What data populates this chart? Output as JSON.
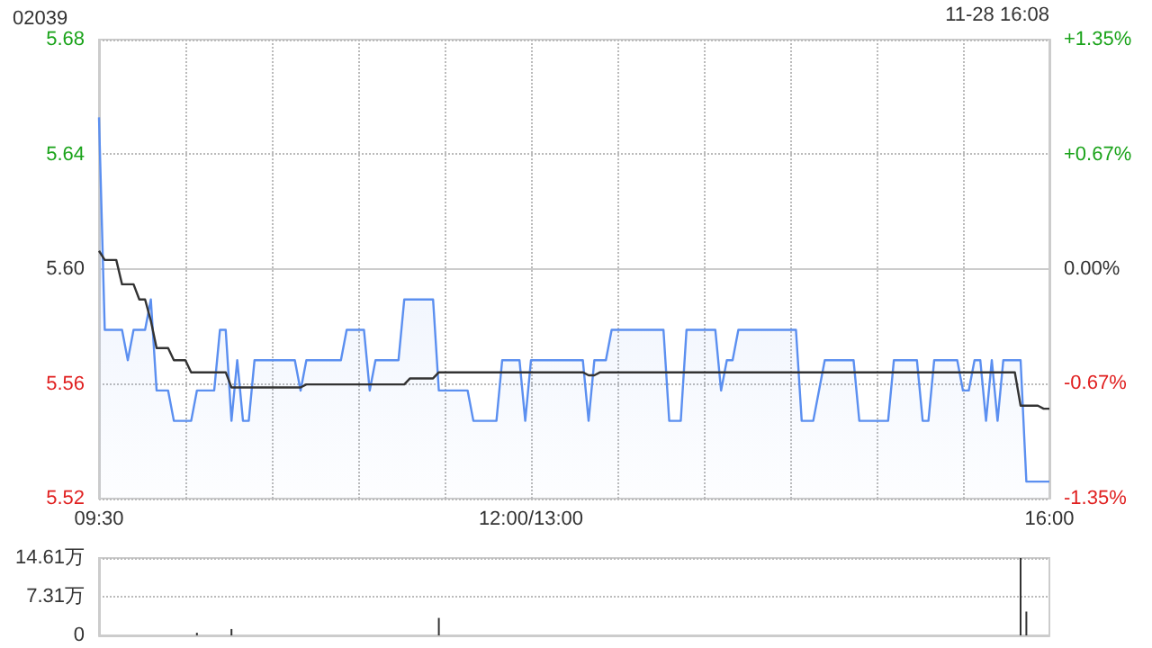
{
  "chart_data": [
    {
      "type": "area",
      "title": "02039",
      "annotations": [
        "11-28 16:08"
      ],
      "categories": [
        "09:30",
        null,
        null,
        null,
        null,
        null,
        null,
        null,
        null,
        null,
        null,
        null,
        null,
        null,
        null,
        null,
        null,
        null,
        null,
        null,
        null,
        null,
        null,
        null,
        null,
        null,
        null,
        null,
        null,
        null,
        null,
        null,
        null,
        null,
        null,
        null,
        null,
        null,
        null,
        null,
        null,
        null,
        null,
        null,
        null,
        null,
        null,
        null,
        null,
        null,
        null,
        null,
        null,
        null,
        null,
        null,
        null,
        null,
        null,
        null,
        null,
        null,
        null,
        null,
        null,
        null,
        null,
        null,
        null,
        null,
        null,
        null,
        null,
        null,
        null,
        "12:00/13:00",
        null,
        null,
        null,
        null,
        null,
        null,
        null,
        null,
        null,
        null,
        null,
        null,
        null,
        null,
        null,
        null,
        null,
        null,
        null,
        null,
        null,
        null,
        null,
        null,
        null,
        null,
        null,
        null,
        null,
        null,
        null,
        null,
        null,
        null,
        null,
        null,
        null,
        null,
        null,
        null,
        null,
        null,
        null,
        null,
        null,
        null,
        null,
        null,
        null,
        null,
        null,
        null,
        null,
        null,
        null,
        null,
        null,
        null,
        null,
        null,
        null,
        null,
        null,
        null,
        null,
        null,
        null,
        null,
        null,
        null,
        null,
        null,
        null,
        null,
        null,
        null,
        null,
        null,
        null,
        null,
        null,
        null,
        null,
        null,
        null,
        null,
        null,
        null,
        null,
        "16:00"
      ],
      "ylim": [
        5.5244,
        5.6756
      ],
      "yticks": [
        {
          "value": 5.5244,
          "label": "5.52"
        },
        {
          "value": 5.5622,
          "label": "5.56"
        },
        {
          "value": 5.6,
          "label": "5.60"
        },
        {
          "value": 5.6378,
          "label": "5.64"
        },
        {
          "value": 5.6756,
          "label": "5.68"
        }
      ],
      "y2lim": [
        -1.35,
        1.35
      ],
      "y2ticks": [
        {
          "value": -1.35,
          "label": "-1.35%"
        },
        {
          "value": -0.67,
          "label": "-0.67%"
        },
        {
          "value": 0,
          "label": "0.00%"
        },
        {
          "value": 0.67,
          "label": "+0.67%"
        },
        {
          "value": 1.35,
          "label": "+1.35%"
        }
      ],
      "grid": true,
      "marker": "none",
      "series": [
        {
          "type": "area",
          "color": "#5b8ff0",
          "values": [
            5.65,
            5.58,
            5.58,
            5.58,
            5.58,
            5.57,
            5.58,
            5.58,
            5.58,
            5.59,
            5.56,
            5.56,
            5.56,
            5.55,
            5.55,
            5.55,
            5.55,
            5.56,
            5.56,
            5.56,
            5.56,
            5.58,
            5.58,
            5.55,
            5.57,
            5.55,
            5.55,
            5.57,
            5.57,
            5.57,
            5.57,
            5.57,
            5.57,
            5.57,
            5.57,
            5.56,
            5.57,
            5.57,
            5.57,
            5.57,
            5.57,
            5.57,
            5.57,
            5.58,
            5.58,
            5.58,
            5.58,
            5.56,
            5.57,
            5.57,
            5.57,
            5.57,
            5.57,
            5.59,
            5.59,
            5.59,
            5.59,
            5.59,
            5.59,
            5.56,
            5.56,
            5.56,
            5.56,
            5.56,
            5.56,
            5.55,
            5.55,
            5.55,
            5.55,
            5.55,
            5.57,
            5.57,
            5.57,
            5.57,
            5.55,
            5.57,
            5.57,
            5.57,
            5.57,
            5.57,
            5.57,
            5.57,
            5.57,
            5.57,
            5.57,
            5.55,
            5.57,
            5.57,
            5.57,
            5.58,
            5.58,
            5.58,
            5.58,
            5.58,
            5.58,
            5.58,
            5.58,
            5.58,
            5.58,
            5.55,
            5.55,
            5.55,
            5.58,
            5.58,
            5.58,
            5.58,
            5.58,
            5.58,
            5.56,
            5.57,
            5.57,
            5.58,
            5.58,
            5.58,
            5.58,
            5.58,
            5.58,
            5.58,
            5.58,
            5.58,
            5.58,
            5.58,
            5.55,
            5.55,
            5.55,
            5.56,
            5.57,
            5.57,
            5.57,
            5.57,
            5.57,
            5.57,
            5.55,
            5.55,
            5.55,
            5.55,
            5.55,
            5.55,
            5.57,
            5.57,
            5.57,
            5.57,
            5.57,
            5.55,
            5.55,
            5.57,
            5.57,
            5.57,
            5.57,
            5.57,
            5.56,
            5.56,
            5.57,
            5.57,
            5.55,
            5.57,
            5.55,
            5.57,
            5.57,
            5.57,
            5.57,
            5.53,
            5.53,
            5.53,
            5.53,
            5.53
          ]
        },
        {
          "type": "line",
          "color": "#333333",
          "values": [
            5.606,
            5.603,
            5.603,
            5.603,
            5.595,
            5.595,
            5.595,
            5.59,
            5.59,
            5.583,
            5.574,
            5.574,
            5.574,
            5.57,
            5.57,
            5.57,
            5.566,
            5.566,
            5.566,
            5.566,
            5.566,
            5.566,
            5.566,
            5.561,
            5.561,
            5.561,
            5.561,
            5.561,
            5.561,
            5.561,
            5.561,
            5.561,
            5.561,
            5.561,
            5.561,
            5.561,
            5.562,
            5.562,
            5.562,
            5.562,
            5.562,
            5.562,
            5.562,
            5.562,
            5.562,
            5.562,
            5.562,
            5.562,
            5.562,
            5.562,
            5.562,
            5.562,
            5.562,
            5.562,
            5.564,
            5.564,
            5.564,
            5.564,
            5.564,
            5.566,
            5.566,
            5.566,
            5.566,
            5.566,
            5.566,
            5.566,
            5.566,
            5.566,
            5.566,
            5.566,
            5.566,
            5.566,
            5.566,
            5.566,
            5.566,
            5.566,
            5.566,
            5.566,
            5.566,
            5.566,
            5.566,
            5.566,
            5.566,
            5.566,
            5.566,
            5.565,
            5.565,
            5.566,
            5.566,
            5.566,
            5.566,
            5.566,
            5.566,
            5.566,
            5.566,
            5.566,
            5.566,
            5.566,
            5.566,
            5.566,
            5.566,
            5.566,
            5.566,
            5.566,
            5.566,
            5.566,
            5.566,
            5.566,
            5.566,
            5.566,
            5.566,
            5.566,
            5.566,
            5.566,
            5.566,
            5.566,
            5.566,
            5.566,
            5.566,
            5.566,
            5.566,
            5.566,
            5.566,
            5.566,
            5.566,
            5.566,
            5.566,
            5.566,
            5.566,
            5.566,
            5.566,
            5.566,
            5.566,
            5.566,
            5.566,
            5.566,
            5.566,
            5.566,
            5.566,
            5.566,
            5.566,
            5.566,
            5.566,
            5.566,
            5.566,
            5.566,
            5.566,
            5.566,
            5.566,
            5.566,
            5.566,
            5.566,
            5.566,
            5.566,
            5.566,
            5.566,
            5.566,
            5.566,
            5.566,
            5.566,
            5.555,
            5.555,
            5.555,
            5.555,
            5.554,
            5.554
          ]
        }
      ]
    },
    {
      "type": "bar",
      "color": "#333333",
      "tick_labels": "y",
      "grid": "y",
      "categories": [
        null,
        null,
        null,
        null,
        null,
        null,
        null,
        null,
        null,
        null,
        null,
        null,
        null,
        null,
        null,
        null,
        null,
        null,
        null,
        null,
        null,
        null,
        null,
        null,
        null,
        null,
        null,
        null,
        null,
        null,
        null,
        null,
        null,
        null,
        null,
        null,
        null,
        null,
        null,
        null,
        null,
        null,
        null,
        null,
        null,
        null,
        null,
        null,
        null,
        null,
        null,
        null,
        null,
        null,
        null,
        null,
        null,
        null,
        null,
        null,
        null,
        null,
        null,
        null,
        null,
        null,
        null,
        null,
        null,
        null,
        null,
        null,
        null,
        null,
        null,
        null,
        null,
        null,
        null,
        null,
        null,
        null,
        null,
        null,
        null,
        null,
        null,
        null,
        null,
        null,
        null,
        null,
        null,
        null,
        null,
        null,
        null,
        null,
        null,
        null,
        null,
        null,
        null,
        null,
        null,
        null,
        null,
        null,
        null,
        null,
        null,
        null,
        null,
        null,
        null,
        null,
        null,
        null,
        null,
        null,
        null,
        null,
        null,
        null,
        null,
        null,
        null,
        null,
        null,
        null,
        null,
        null,
        null,
        null,
        null,
        null,
        null,
        null,
        null,
        null,
        null,
        null,
        null,
        null,
        null,
        null,
        null,
        null,
        null,
        null,
        null,
        null,
        null,
        null,
        null,
        null,
        null,
        null,
        null,
        null,
        null,
        null,
        null,
        null,
        null,
        null
      ],
      "ylim": [
        0,
        14.61
      ],
      "yticks": [
        0,
        {
          "value": 7.31,
          "label": "7.31万"
        },
        {
          "value": 14.61,
          "label": "14.61万"
        }
      ],
      "values": [
        null,
        null,
        null,
        null,
        null,
        null,
        null,
        null,
        null,
        null,
        null,
        null,
        null,
        null,
        null,
        null,
        null,
        0.5,
        null,
        null,
        null,
        null,
        null,
        1.2,
        null,
        null,
        null,
        null,
        null,
        null,
        null,
        null,
        null,
        null,
        null,
        null,
        null,
        null,
        null,
        null,
        null,
        null,
        null,
        null,
        null,
        null,
        null,
        null,
        null,
        null,
        null,
        null,
        null,
        null,
        null,
        null,
        null,
        null,
        null,
        3.3,
        null,
        null,
        null,
        null,
        null,
        null,
        null,
        null,
        null,
        null,
        null,
        null,
        null,
        null,
        null,
        null,
        null,
        null,
        null,
        null,
        null,
        null,
        null,
        null,
        null,
        null,
        null,
        null,
        null,
        null,
        null,
        null,
        null,
        null,
        null,
        null,
        null,
        null,
        null,
        null,
        null,
        null,
        null,
        null,
        null,
        null,
        null,
        null,
        null,
        null,
        null,
        null,
        null,
        null,
        null,
        null,
        null,
        null,
        null,
        null,
        null,
        null,
        null,
        null,
        null,
        null,
        null,
        null,
        null,
        null,
        null,
        null,
        null,
        null,
        null,
        null,
        null,
        null,
        null,
        null,
        null,
        null,
        null,
        null,
        null,
        null,
        null,
        null,
        null,
        null,
        null,
        null,
        null,
        null,
        null,
        null,
        null,
        null,
        null,
        null,
        14.6,
        4.5,
        null,
        null,
        null,
        null
      ]
    }
  ]
}
